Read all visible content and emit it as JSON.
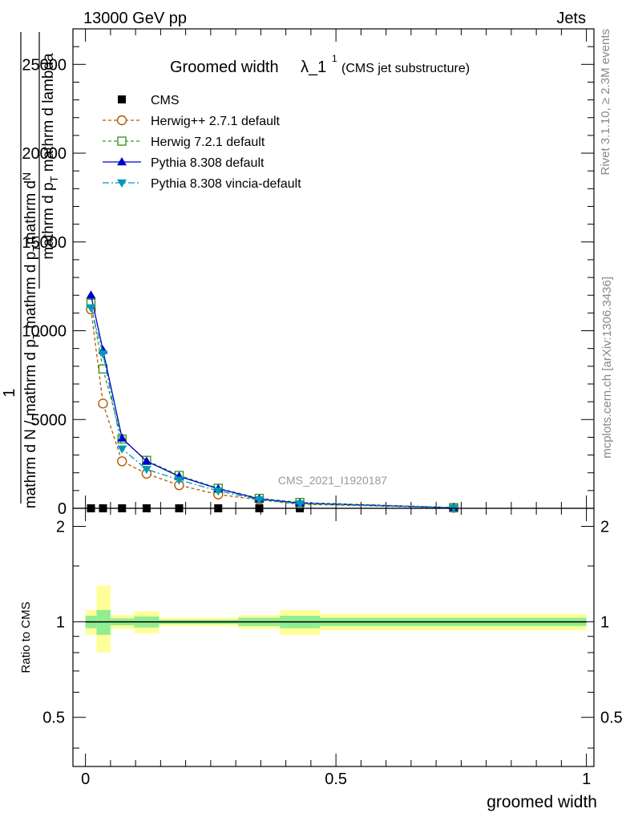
{
  "header": {
    "energy_label": "13000 GeV pp",
    "category_label": "Jets",
    "rivet_label": "Rivet 3.1.10, ≥ 2.3M events",
    "mcplots_label": "mcplots.cern.ch [arXiv:1306.3436]",
    "analysis_label": "CMS_2021_I1920187"
  },
  "chart_data": {
    "type": "line",
    "title_main": "Groomed width",
    "title_lambda": "λ_1",
    "title_sup": "1",
    "title_sub": "(CMS jet substructure)",
    "ylabel_top": "1",
    "ylabel_numer": "mathrm d",
    "ylabel_numer_frac": "N",
    "ylabel_denom": "mathrm d p",
    "ylabel_denom_T": "T",
    "ylabel_denom2": " mathrm d lambda",
    "ylabel_bottom": "mathrm d N / mathrm d p",
    "ylabel_bottom_T": "T",
    "ylabel_bottom2": " mathrm d p",
    "ylabel_bottom_T2": "T",
    "xlabel": "groomed width",
    "ratio_ylabel": "Ratio to CMS",
    "xlim": [
      -0.025,
      1.015
    ],
    "ylim_main": [
      0,
      27000
    ],
    "ylim_ratio": [
      0.35,
      2.28
    ],
    "main_yticks": [
      0,
      5000,
      10000,
      15000,
      20000,
      25000
    ],
    "main_ytick_labels": [
      "0",
      "5000",
      "10000",
      "15000",
      "20000",
      "25000"
    ],
    "ratio_yticks": [
      0.5,
      1,
      2
    ],
    "ratio_ytick_labels": [
      "0.5",
      "1",
      "2"
    ],
    "xticks": [
      0,
      0.5,
      1
    ],
    "xtick_labels": [
      "0",
      "0.5",
      "1"
    ],
    "x": [
      0.011,
      0.035,
      0.073,
      0.122,
      0.187,
      0.265,
      0.347,
      0.428,
      0.735
    ],
    "series": [
      {
        "name": "CMS",
        "color": "#000000",
        "marker": "square-filled",
        "dash": "",
        "values": [
          0,
          0,
          0,
          0,
          0,
          0,
          0,
          0,
          0
        ]
      },
      {
        "name": "Herwig++ 2.7.1 default",
        "color": "#b35900",
        "marker": "circle-open",
        "dash": "4,3",
        "values": [
          11200,
          5900,
          2650,
          1950,
          1300,
          780,
          480,
          230,
          30
        ]
      },
      {
        "name": "Herwig 7.2.1 default",
        "color": "#3a9a1c",
        "marker": "square-open",
        "dash": "4,3",
        "values": [
          11550,
          7850,
          3900,
          2700,
          1850,
          1130,
          560,
          330,
          40
        ]
      },
      {
        "name": "Pythia 8.308 default",
        "color": "#0000cc",
        "marker": "triangle-up-filled",
        "dash": "",
        "values": [
          12000,
          8900,
          3950,
          2650,
          1800,
          1100,
          530,
          290,
          35
        ]
      },
      {
        "name": "Pythia 8.308 vincia-default",
        "color": "#0099bb",
        "marker": "triangle-down-filled",
        "dash": "8,3,2,3",
        "values": [
          11300,
          8700,
          3350,
          2200,
          1600,
          980,
          490,
          260,
          30
        ]
      }
    ],
    "ratio_bands": {
      "edges": [
        0,
        0.022,
        0.05,
        0.097,
        0.147,
        0.227,
        0.305,
        0.388,
        0.468,
        1.0
      ],
      "yellow_lo": [
        0.91,
        0.8,
        0.95,
        0.92,
        0.97,
        0.97,
        0.95,
        0.91,
        0.94
      ],
      "yellow_hi": [
        1.09,
        1.3,
        1.05,
        1.08,
        1.03,
        1.03,
        1.05,
        1.09,
        1.06
      ],
      "green_lo": [
        0.955,
        0.91,
        0.975,
        0.96,
        0.985,
        0.985,
        0.97,
        0.955,
        0.97
      ],
      "green_hi": [
        1.045,
        1.09,
        1.025,
        1.04,
        1.015,
        1.015,
        1.03,
        1.045,
        1.03
      ],
      "yellow_color": "#ffff99",
      "green_color": "#90ee90"
    }
  }
}
